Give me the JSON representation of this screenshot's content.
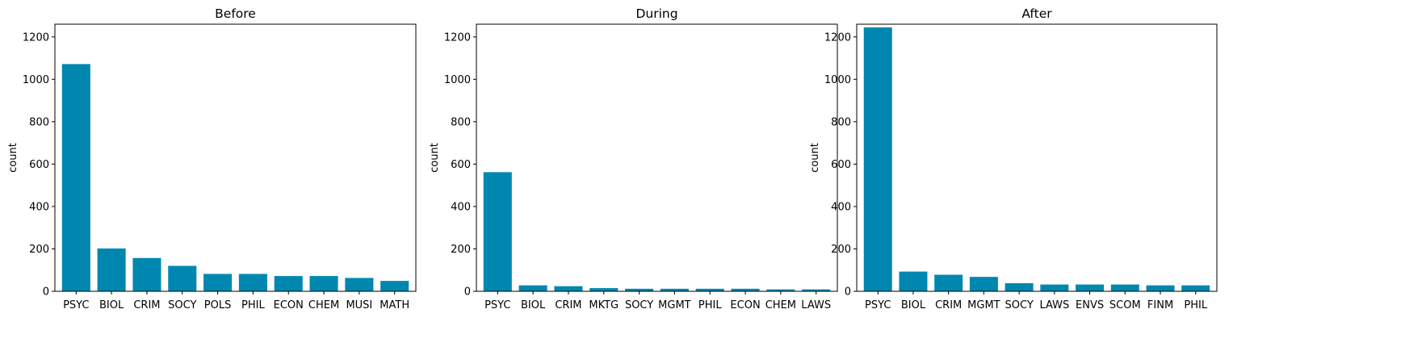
{
  "style": {
    "bar_color": "#0087b0",
    "axis_color": "#000000",
    "background": "#ffffff"
  },
  "chart_data": [
    {
      "type": "bar",
      "title": "Before",
      "xlabel": "",
      "ylabel": "count",
      "ylim": [
        0,
        1260
      ],
      "yticks": [
        0,
        200,
        400,
        600,
        800,
        1000,
        1200
      ],
      "categories": [
        "PSYC",
        "BIOL",
        "CRIM",
        "SOCY",
        "POLS",
        "PHIL",
        "ECON",
        "CHEM",
        "MUSI",
        "MATH"
      ],
      "values": [
        1072,
        202,
        157,
        120,
        82,
        82,
        72,
        72,
        63,
        49
      ]
    },
    {
      "type": "bar",
      "title": "During",
      "xlabel": "",
      "ylabel": "count",
      "ylim": [
        0,
        1260
      ],
      "yticks": [
        0,
        200,
        400,
        600,
        800,
        1000,
        1200
      ],
      "categories": [
        "PSYC",
        "BIOL",
        "CRIM",
        "MKTG",
        "SOCY",
        "MGMT",
        "PHIL",
        "ECON",
        "CHEM",
        "LAWS"
      ],
      "values": [
        562,
        28,
        24,
        15,
        12,
        12,
        12,
        12,
        9,
        9
      ]
    },
    {
      "type": "bar",
      "title": "After",
      "xlabel": "",
      "ylabel": "count",
      "ylim": [
        0,
        1260
      ],
      "yticks": [
        0,
        200,
        400,
        600,
        800,
        1000,
        1200
      ],
      "categories": [
        "PSYC",
        "BIOL",
        "CRIM",
        "MGMT",
        "SOCY",
        "LAWS",
        "ENVS",
        "SCOM",
        "FINM",
        "PHIL"
      ],
      "values": [
        1245,
        93,
        78,
        68,
        38,
        32,
        32,
        32,
        28,
        28
      ]
    }
  ]
}
